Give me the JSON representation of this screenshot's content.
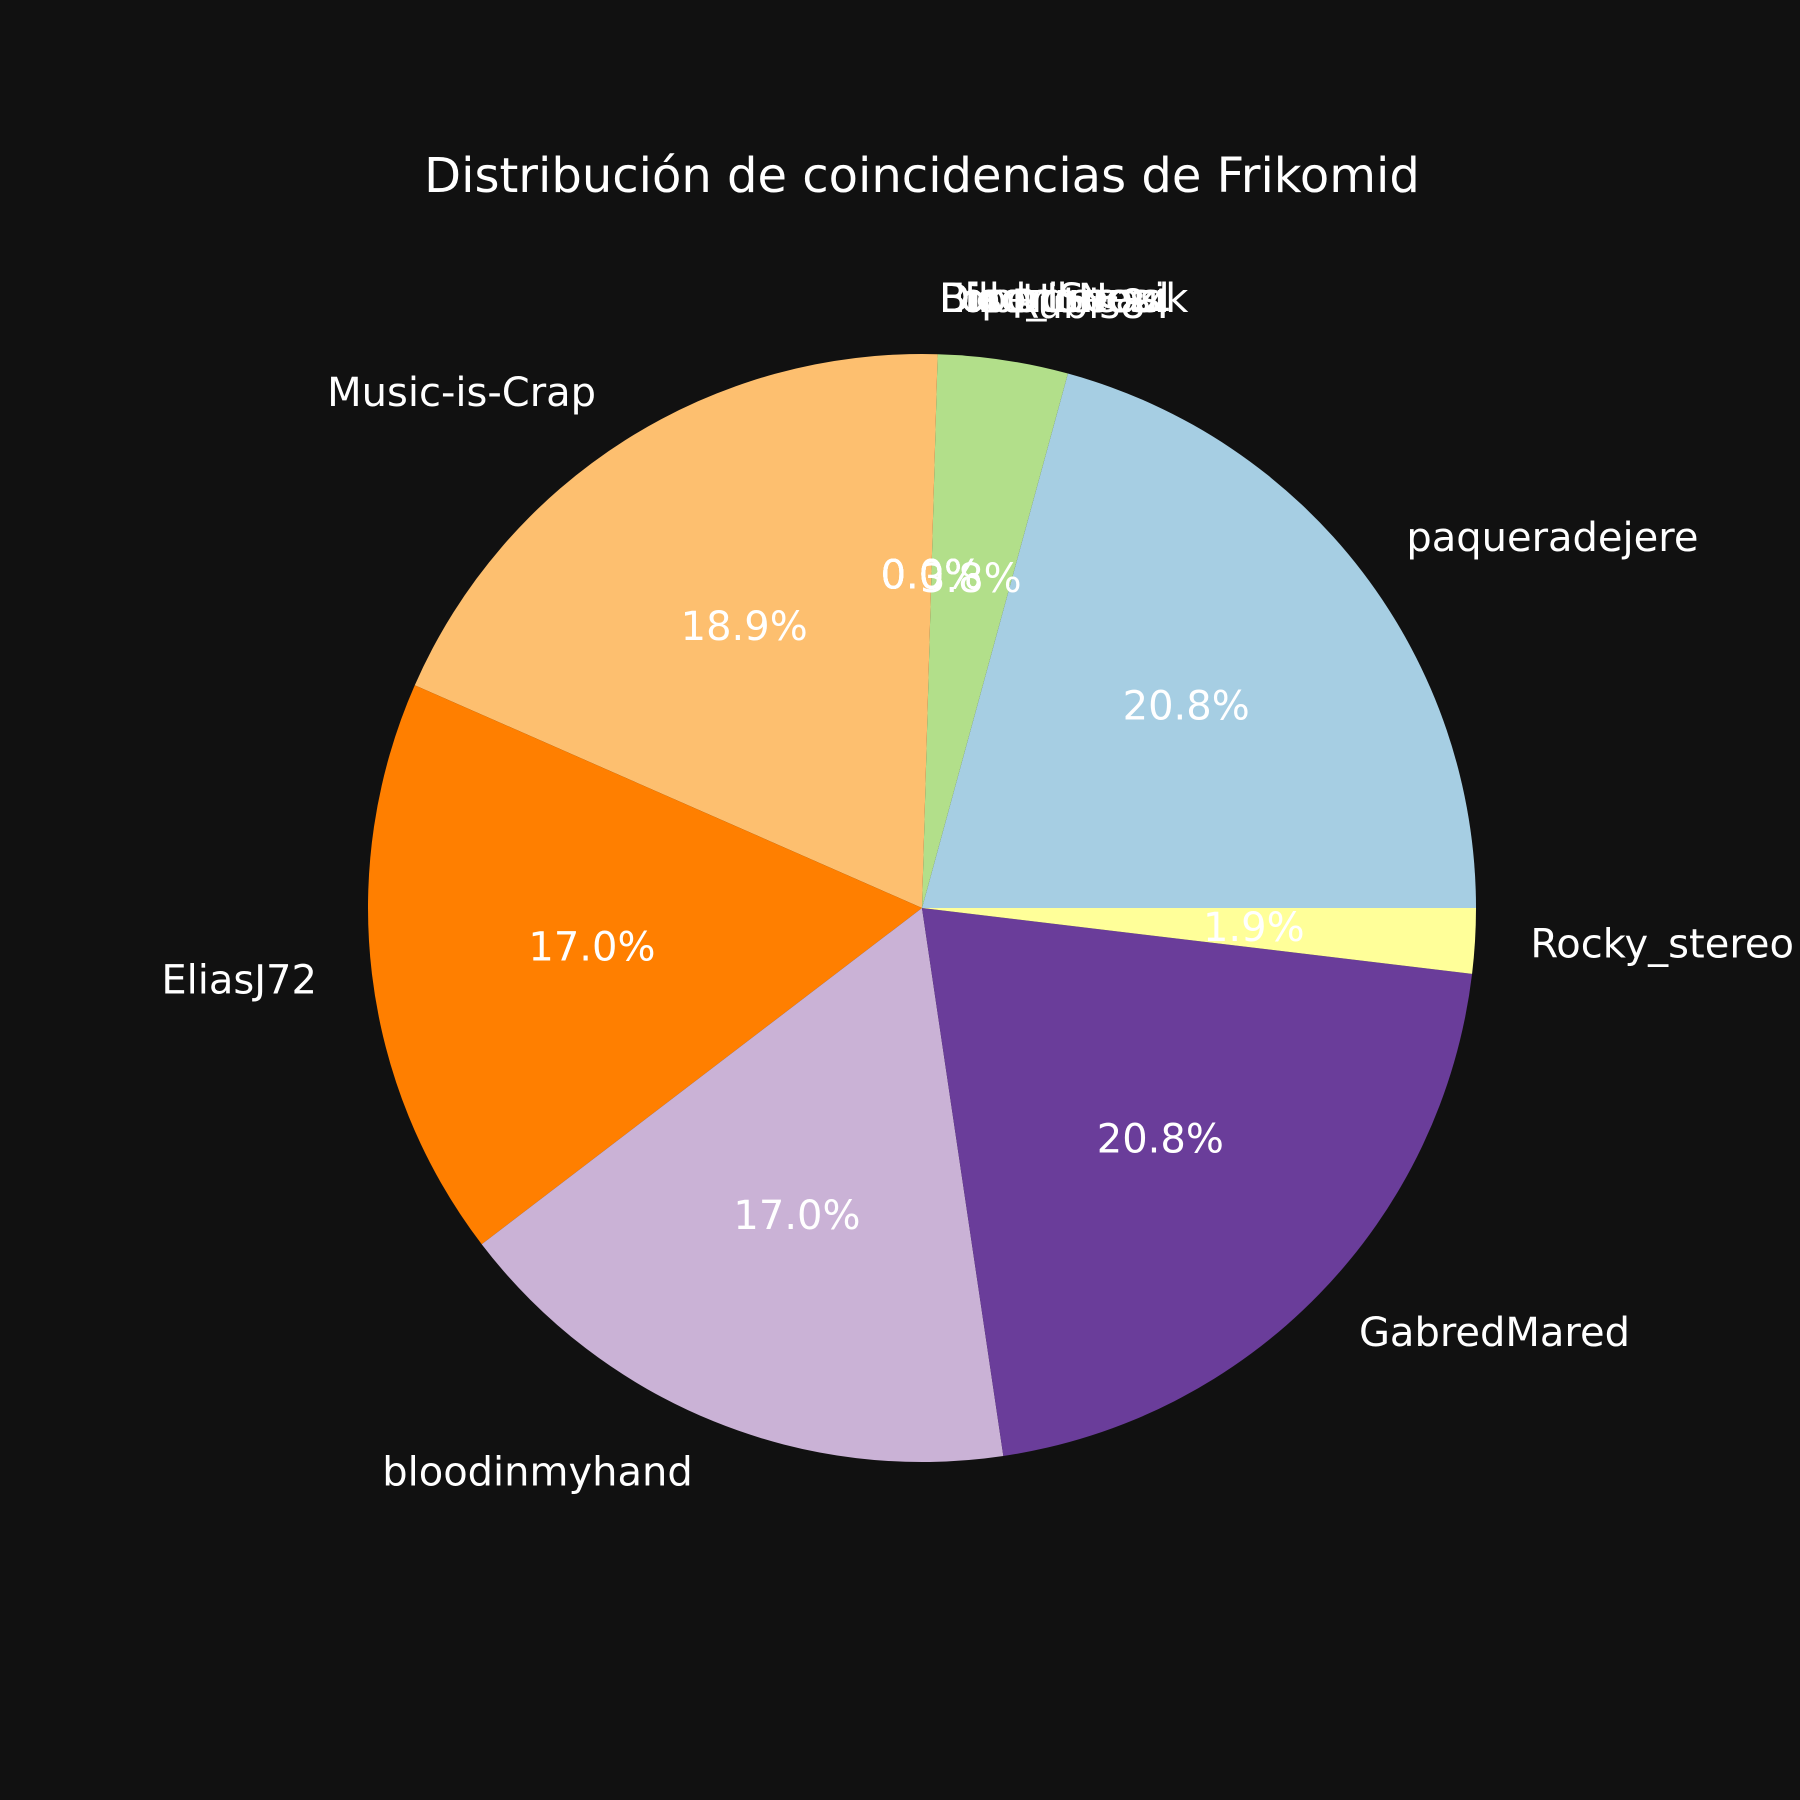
{
  "chart_data": {
    "type": "pie",
    "title": "Distribución de coincidencias de Frikomid",
    "start_angle_deg": 0,
    "direction": "counterclockwise",
    "slices": [
      {
        "label": "paqueradejere",
        "value": 20.8,
        "pct_label": "20.8%",
        "color": "#a6cee3"
      },
      {
        "label": "Rubis84",
        "value": 3.8,
        "pct_label": "3.8%",
        "color": "#b2df8a"
      },
      {
        "label": "Lord_Lucas",
        "value": 0.0,
        "pct_label": "0.0%",
        "color": "#fb9a99"
      },
      {
        "label": "Bilbotunes",
        "value": 0.0,
        "pct_label": "0.0%",
        "color": "#e31a1c"
      },
      {
        "label": "Disorder",
        "value": 0.0,
        "pct_label": "0.0%",
        "color": "#cab2d6"
      },
      {
        "label": "ElectroNuzik",
        "value": 0.0,
        "pct_label": "0.0%",
        "color": "#33a02c"
      },
      {
        "label": "DiperiSeoul",
        "value": 0.0,
        "pct_label": "0.0%",
        "color": "#1f78b4"
      },
      {
        "label": "Music-is-Crap",
        "value": 18.9,
        "pct_label": "18.9%",
        "color": "#fdbf6f"
      },
      {
        "label": "EliasJ72",
        "value": 17.0,
        "pct_label": "17.0%",
        "color": "#ff7f00"
      },
      {
        "label": "bloodinmyhand",
        "value": 17.0,
        "pct_label": "17.0%",
        "color": "#cab2d6"
      },
      {
        "label": "GabredMared",
        "value": 20.8,
        "pct_label": "20.8%",
        "color": "#6a3d9a"
      },
      {
        "label": "Rocky_stereo",
        "value": 1.9,
        "pct_label": "1.9%",
        "color": "#ffff99"
      }
    ]
  }
}
